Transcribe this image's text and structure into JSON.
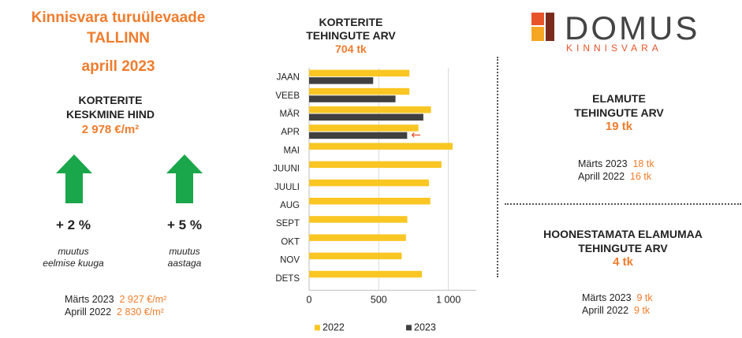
{
  "header": {
    "title_line1": "Kinnisvara turuülevaade",
    "title_line2": "TALLINN",
    "title_line3": "aprill 2023"
  },
  "price": {
    "label_line1": "KORTERITE",
    "label_line2": "KESKMINE HIND",
    "value": "2 978 €/m²",
    "change_month": "+ 2 %",
    "change_month_note_1": "muutus",
    "change_month_note_2": "eelmise kuuga",
    "change_year": "+ 5 %",
    "change_year_note_1": "muutus",
    "change_year_note_2": "aastaga",
    "cmp1_label": "Märts 2023",
    "cmp1_value": "2 927 €/m²",
    "cmp2_label": "Aprill 2022",
    "cmp2_value": "2 830 €/m²",
    "arrow_color": "#1aa64a"
  },
  "chart_head": {
    "line1": "KORTERITE",
    "line2": "TEHINGUTE ARV",
    "value": "704 tk"
  },
  "chart_data": {
    "type": "bar",
    "orientation": "horizontal",
    "categories": [
      "JAAN",
      "VEEB",
      "MÄR",
      "APR",
      "MAI",
      "JUUNI",
      "JUULI",
      "AUG",
      "SEPT",
      "OKT",
      "NOV",
      "DETS"
    ],
    "series": [
      {
        "name": "2022",
        "color": "#f9c623",
        "values": [
          720,
          720,
          875,
          785,
          1030,
          950,
          860,
          870,
          705,
          695,
          665,
          810
        ]
      },
      {
        "name": "2023",
        "color": "#404040",
        "values": [
          460,
          620,
          820,
          704,
          null,
          null,
          null,
          null,
          null,
          null,
          null,
          null
        ]
      }
    ],
    "x_ticks": [
      "0",
      "500",
      "1 000"
    ],
    "xlim": [
      0,
      1200
    ],
    "grid": true,
    "legend": "bottom",
    "annotation": "←",
    "annotation_color": "#e8542a"
  },
  "logo": {
    "word": "DOMUS",
    "sub": "KINNISVARA",
    "colors": [
      "#e8542a",
      "#f5a623",
      "#7a2a1d",
      "#444444"
    ]
  },
  "houses": {
    "line1": "ELAMUTE",
    "line2": "TEHINGUTE ARV",
    "value": "19 tk",
    "cmp1_label": "Märts 2023",
    "cmp1_value": "18 tk",
    "cmp2_label": "Aprill 2022",
    "cmp2_value": "16 tk"
  },
  "land": {
    "line1": "HOONESTAMATA ELAMUMAA",
    "line2": "TEHINGUTE ARV",
    "value": "4 tk",
    "cmp1_label": "Märts 2023",
    "cmp1_value": "9 tk",
    "cmp2_label": "Aprill 2022",
    "cmp2_value": "9 tk"
  }
}
